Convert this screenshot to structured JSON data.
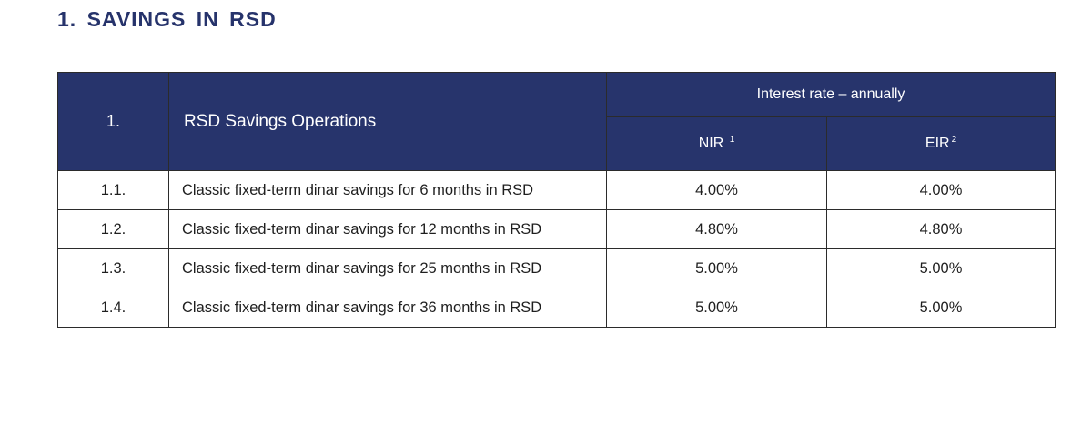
{
  "section": {
    "title": "1. SAVINGS IN RSD"
  },
  "table": {
    "header": {
      "number": "1.",
      "operations": "RSD Savings Operations",
      "rate_group": "Interest rate – annually",
      "nir": "NIR",
      "nir_mark": "1",
      "eir": "EIR",
      "eir_mark": "2"
    },
    "rows": [
      {
        "number": "1.1.",
        "description": "Classic fixed-term dinar savings for 6 months in RSD",
        "nir": "4.00%",
        "eir": "4.00%"
      },
      {
        "number": "1.2.",
        "description": "Classic fixed-term dinar savings for 12 months in RSD",
        "nir": "4.80%",
        "eir": "4.80%"
      },
      {
        "number": "1.3.",
        "description": "Classic fixed-term dinar savings for 25 months in RSD",
        "nir": "5.00%",
        "eir": "5.00%"
      },
      {
        "number": "1.4.",
        "description": "Classic fixed-term dinar savings for 36 months in RSD",
        "nir": "5.00%",
        "eir": "5.00%"
      }
    ]
  },
  "colors": {
    "header_background": "#27346c",
    "heading_text": "#26336b",
    "border": "#2b2b2b"
  }
}
